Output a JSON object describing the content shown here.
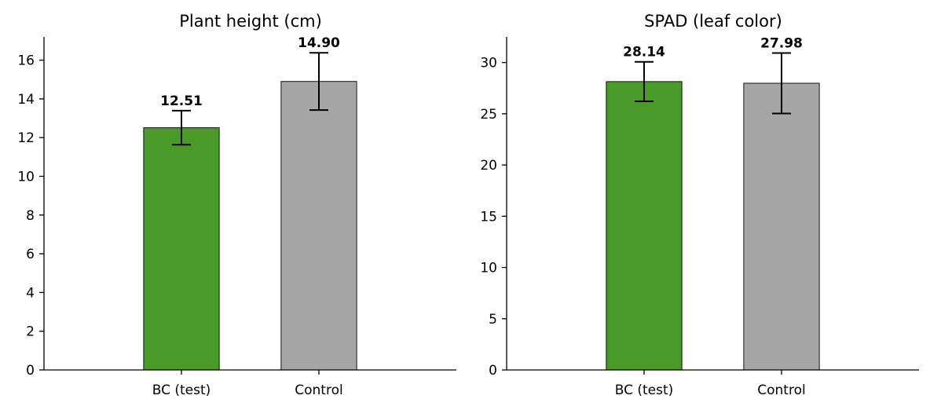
{
  "chart_data": [
    {
      "type": "bar",
      "title": "Plant height (cm)",
      "xlabel": "",
      "ylabel": "",
      "categories": [
        "BC (test)",
        "Control"
      ],
      "values": [
        12.51,
        14.9
      ],
      "errors": [
        0.88,
        1.48
      ],
      "value_labels": [
        "12.51",
        "14.90"
      ],
      "colors": [
        "#4a9a2a",
        "#a6a6a6"
      ],
      "ylim": [
        0,
        17.2
      ],
      "yticks": [
        0,
        2,
        4,
        6,
        8,
        10,
        12,
        14,
        16
      ],
      "grid": false
    },
    {
      "type": "bar",
      "title": "SPAD (leaf color)",
      "xlabel": "",
      "ylabel": "",
      "categories": [
        "BC (test)",
        "Control"
      ],
      "values": [
        28.14,
        27.98
      ],
      "errors": [
        1.93,
        2.95
      ],
      "value_labels": [
        "28.14",
        "27.98"
      ],
      "colors": [
        "#4a9a2a",
        "#a6a6a6"
      ],
      "ylim": [
        0,
        32.5
      ],
      "yticks": [
        0,
        5,
        10,
        15,
        20,
        25,
        30
      ],
      "grid": false
    }
  ]
}
